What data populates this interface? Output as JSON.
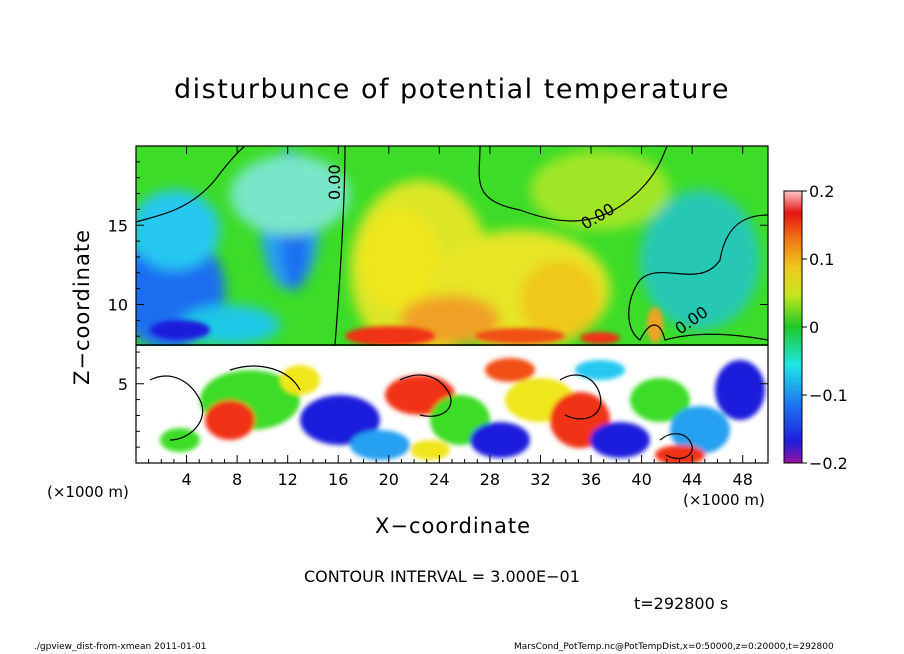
{
  "chart_data": {
    "type": "heatmap",
    "title": "disturbunce of potential temperature",
    "xlabel": "X−coordinate",
    "ylabel": "Z−coordinate",
    "x_unit_label": "(×1000 m)",
    "z_unit_label": "(×1000 m)",
    "xlim": [
      0,
      50
    ],
    "ylim": [
      0,
      20
    ],
    "x_ticks": [
      "4",
      "8",
      "12",
      "16",
      "20",
      "24",
      "28",
      "32",
      "36",
      "40",
      "44",
      "48"
    ],
    "y_ticks": [
      "5",
      "10",
      "15"
    ],
    "colorbar": {
      "range": [
        -0.2,
        0.2
      ],
      "ticks": [
        "0.2",
        "0.1",
        "0",
        "−0.1",
        "−0.2"
      ]
    },
    "contour_labels": [
      "0.00",
      "0.00",
      "0.00"
    ],
    "contour_interval": "CONTOUR INTERVAL = 3.000E−01",
    "time": "t=292800 s",
    "grid": false
  },
  "footer": {
    "left": "./gpview_dist-from-xmean  2011-01-01",
    "right": "MarsCond_PotTemp.nc@PotTempDist,x=0:50000,z=0:20000,t=292800"
  },
  "colors": {
    "upper_background": "#3cdc28",
    "warm": "#f0e61e",
    "hot": "#f03214",
    "cold": "#28a0f0",
    "coldest": "#1e1edc",
    "saturated_low": "#ffffff",
    "contour": "#000000"
  }
}
